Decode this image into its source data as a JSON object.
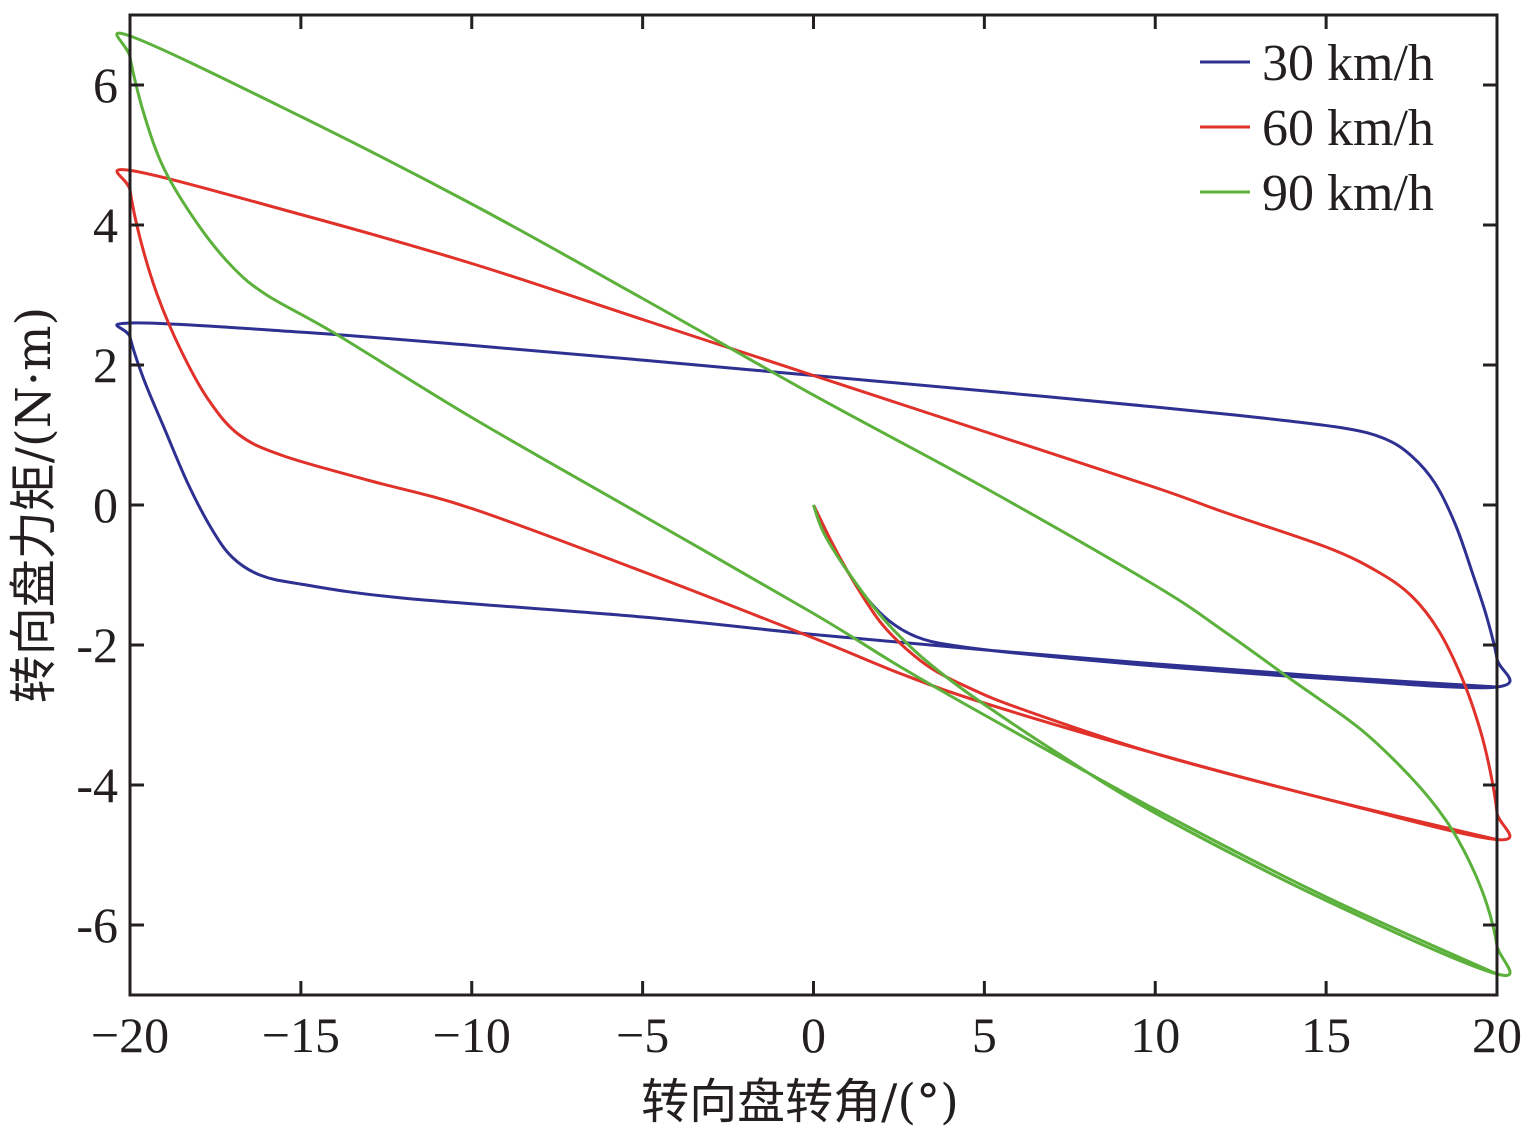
{
  "chart_data": {
    "type": "line",
    "title": "",
    "xlabel": "转向盘转角/(°)",
    "ylabel": "转向盘力矩/(N·m)",
    "xlim": [
      -20,
      20
    ],
    "ylim": [
      -7,
      7
    ],
    "xticks": [
      -20,
      -15,
      -10,
      -5,
      0,
      5,
      10,
      15,
      20
    ],
    "xtick_labels": [
      "−20",
      "−15",
      "−10",
      "−5",
      "0",
      "5",
      "10",
      "15",
      "20"
    ],
    "yticks": [
      6,
      4,
      2,
      0,
      -2,
      -4,
      -6
    ],
    "ytick_labels": [
      "6",
      "4",
      "2",
      "0",
      "-2",
      "-4",
      "-6"
    ],
    "grid": false,
    "legend_position": "top-right",
    "series": [
      {
        "name": "30 km/h",
        "color": "#2e3191",
        "points": [
          [
            0,
            0
          ],
          [
            0.5,
            -0.55
          ],
          [
            1,
            -0.95
          ],
          [
            1.5,
            -1.3
          ],
          [
            2.2,
            -1.65
          ],
          [
            3,
            -1.88
          ],
          [
            4,
            -2.0
          ],
          [
            6,
            -2.12
          ],
          [
            10,
            -2.3
          ],
          [
            15,
            -2.48
          ],
          [
            20,
            -2.6
          ],
          [
            20,
            -2.2
          ],
          [
            19.7,
            -1.6
          ],
          [
            19.3,
            -1.0
          ],
          [
            18.8,
            -0.3
          ],
          [
            18.2,
            0.3
          ],
          [
            17.5,
            0.7
          ],
          [
            16.7,
            0.95
          ],
          [
            15.5,
            1.1
          ],
          [
            13,
            1.25
          ],
          [
            10,
            1.4
          ],
          [
            5,
            1.63
          ],
          [
            0,
            1.85
          ],
          [
            -5,
            2.07
          ],
          [
            -10,
            2.28
          ],
          [
            -15,
            2.47
          ],
          [
            -20,
            2.6
          ],
          [
            -20,
            2.4
          ],
          [
            -19.6,
            1.8
          ],
          [
            -19,
            1.1
          ],
          [
            -18.3,
            0.3
          ],
          [
            -17.6,
            -0.35
          ],
          [
            -17,
            -0.75
          ],
          [
            -16.2,
            -1.0
          ],
          [
            -15,
            -1.13
          ],
          [
            -12,
            -1.33
          ],
          [
            -5,
            -1.6
          ],
          [
            0,
            -1.85
          ],
          [
            5,
            -2.07
          ],
          [
            10,
            -2.27
          ],
          [
            15,
            -2.45
          ],
          [
            20,
            -2.6
          ]
        ]
      },
      {
        "name": "60 km/h",
        "color": "#e0312a",
        "points": [
          [
            0,
            0
          ],
          [
            0.5,
            -0.5
          ],
          [
            1,
            -0.95
          ],
          [
            1.5,
            -1.35
          ],
          [
            2,
            -1.7
          ],
          [
            2.7,
            -2.05
          ],
          [
            3.5,
            -2.35
          ],
          [
            4.5,
            -2.6
          ],
          [
            6,
            -2.9
          ],
          [
            10,
            -3.55
          ],
          [
            15,
            -4.2
          ],
          [
            20,
            -4.78
          ],
          [
            20,
            -4.4
          ],
          [
            19.8,
            -3.8
          ],
          [
            19.5,
            -3.2
          ],
          [
            19,
            -2.5
          ],
          [
            18.3,
            -1.8
          ],
          [
            17.5,
            -1.3
          ],
          [
            16.5,
            -0.95
          ],
          [
            15,
            -0.6
          ],
          [
            12,
            -0.1
          ],
          [
            10,
            0.25
          ],
          [
            5,
            1.05
          ],
          [
            0,
            1.85
          ],
          [
            -5,
            2.65
          ],
          [
            -10,
            3.45
          ],
          [
            -15,
            4.15
          ],
          [
            -20,
            4.78
          ],
          [
            -20,
            4.5
          ],
          [
            -19.7,
            3.8
          ],
          [
            -19.2,
            3.0
          ],
          [
            -18.5,
            2.2
          ],
          [
            -17.7,
            1.5
          ],
          [
            -16.8,
            1.0
          ],
          [
            -15.5,
            0.7
          ],
          [
            -13,
            0.35
          ],
          [
            -10,
            -0.05
          ],
          [
            -5,
            -0.95
          ],
          [
            0,
            -1.9
          ],
          [
            2.5,
            -2.4
          ],
          [
            5,
            -2.83
          ],
          [
            10,
            -3.55
          ],
          [
            15,
            -4.2
          ],
          [
            20,
            -4.78
          ]
        ]
      },
      {
        "name": "90 km/h",
        "color": "#5bb13b",
        "points": [
          [
            0,
            0
          ],
          [
            0.3,
            -0.4
          ],
          [
            1,
            -0.95
          ],
          [
            2,
            -1.6
          ],
          [
            3,
            -2.1
          ],
          [
            4,
            -2.5
          ],
          [
            5,
            -2.85
          ],
          [
            7,
            -3.5
          ],
          [
            10,
            -4.4
          ],
          [
            15,
            -5.65
          ],
          [
            20,
            -6.7
          ],
          [
            20,
            -6.3
          ],
          [
            19.7,
            -5.7
          ],
          [
            19.2,
            -5.1
          ],
          [
            18.5,
            -4.5
          ],
          [
            17.5,
            -3.9
          ],
          [
            16,
            -3.2
          ],
          [
            14,
            -2.5
          ],
          [
            12,
            -1.8
          ],
          [
            10,
            -1.15
          ],
          [
            5,
            0.25
          ],
          [
            0,
            1.57
          ],
          [
            -5,
            2.95
          ],
          [
            -10,
            4.3
          ],
          [
            -15,
            5.55
          ],
          [
            -20,
            6.7
          ],
          [
            -20,
            6.4
          ],
          [
            -19.6,
            5.6
          ],
          [
            -19,
            4.8
          ],
          [
            -18,
            4.0
          ],
          [
            -17,
            3.4
          ],
          [
            -16,
            3.0
          ],
          [
            -14,
            2.45
          ],
          [
            -10,
            1.25
          ],
          [
            -5,
            -0.15
          ],
          [
            0,
            -1.55
          ],
          [
            2.5,
            -2.3
          ],
          [
            5,
            -3.0
          ],
          [
            10,
            -4.35
          ],
          [
            15,
            -5.6
          ],
          [
            20,
            -6.7
          ]
        ]
      }
    ]
  }
}
